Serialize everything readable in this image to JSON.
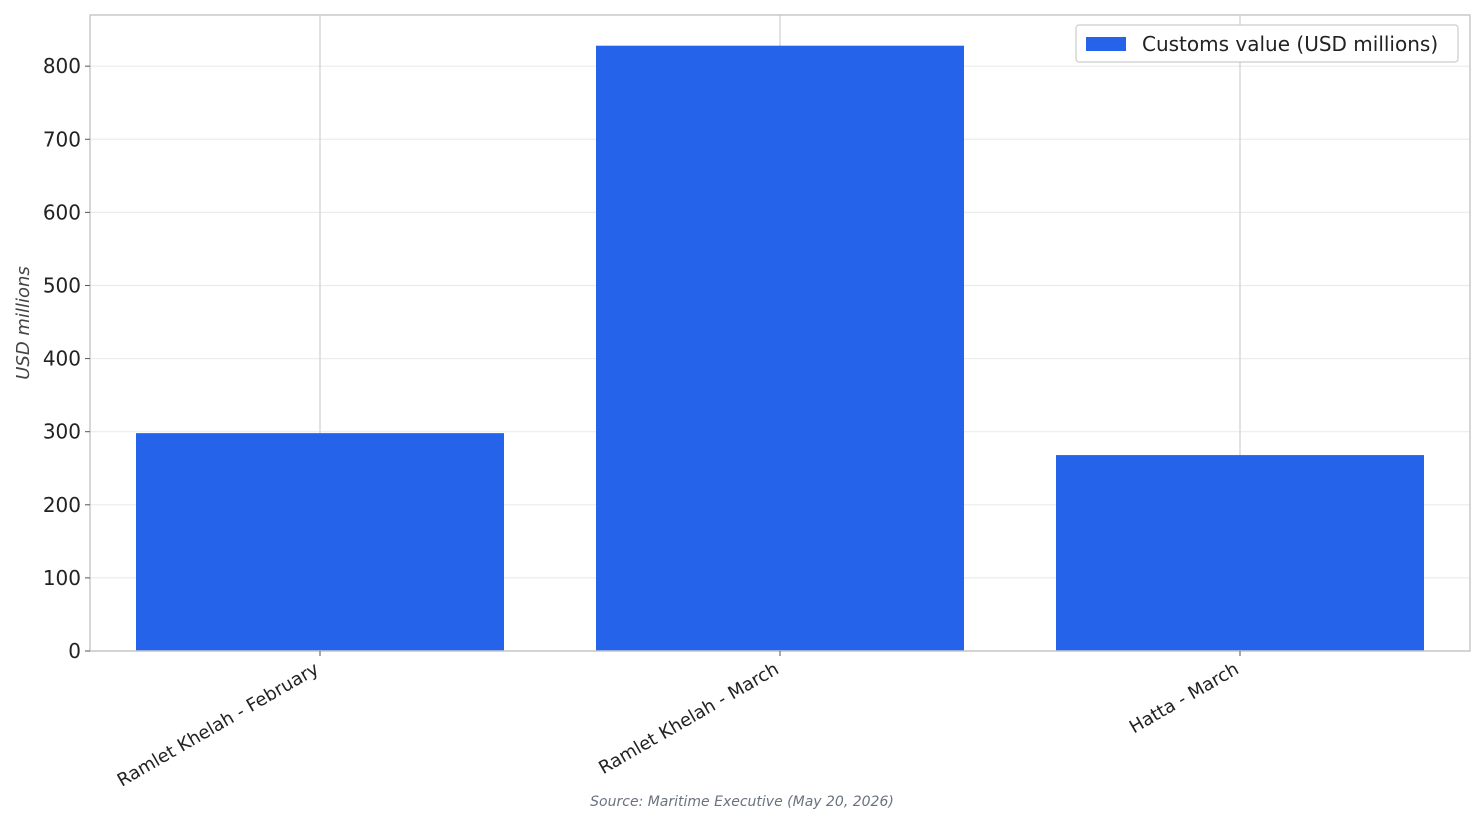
{
  "chart_data": {
    "type": "bar",
    "categories": [
      "Ramlet Khelah - February",
      "Ramlet Khelah - March",
      "Hatta - March"
    ],
    "series": [
      {
        "name": "Customs value (USD millions)",
        "values": [
          298,
          828,
          268
        ]
      }
    ],
    "ylabel": "USD millions",
    "ylim": [
      0,
      870
    ],
    "yticks": [
      0,
      100,
      200,
      300,
      400,
      500,
      600,
      700,
      800
    ],
    "grid": true,
    "legend_position": "top-right",
    "bar_color": "#2563eb",
    "source": "Source: Maritime Executive (May 20, 2026)"
  }
}
